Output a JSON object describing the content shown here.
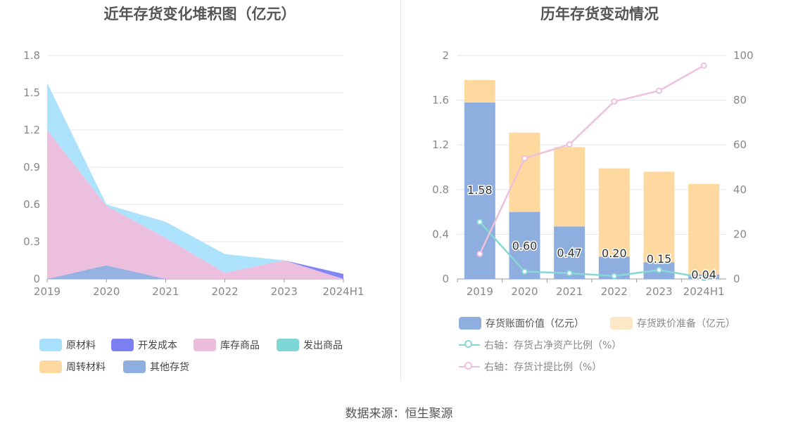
{
  "left_chart": {
    "title": "近年存货变化堆积图（亿元）",
    "legend": [
      {
        "key": "raw",
        "label": "原材料",
        "color": "#a8e0fb"
      },
      {
        "key": "dev",
        "label": "开发成本",
        "color": "#7b7ff2"
      },
      {
        "key": "goods",
        "label": "库存商品",
        "color": "#ecbcdc"
      },
      {
        "key": "shipped",
        "label": "发出商品",
        "color": "#7fd6d6"
      },
      {
        "key": "turnover",
        "label": "周转材料",
        "color": "#fdd9a0"
      },
      {
        "key": "other",
        "label": "其他存货",
        "color": "#8faee0"
      }
    ]
  },
  "right_chart": {
    "title": "历年存货变动情况",
    "legend": [
      {
        "label": "存货账面价值（亿元）",
        "color": "#8faee0",
        "kind": "bar"
      },
      {
        "label": "存货跌价准备（亿元）",
        "color": "#fde7c6",
        "kind": "bar"
      },
      {
        "label": "右轴：存货占净资产比例（%）",
        "color": "#86d8d6",
        "kind": "line"
      },
      {
        "label": "右轴：存货计提比例（%）",
        "color": "#eec0de",
        "kind": "line"
      }
    ]
  },
  "source": "数据来源：恒生聚源",
  "chart_data": [
    {
      "type": "area",
      "stacked": true,
      "title": "近年存货变化堆积图（亿元）",
      "categories": [
        "2019",
        "2020",
        "2021",
        "2022",
        "2023",
        "2024H1"
      ],
      "ylim": [
        0,
        1.8
      ],
      "yticks": [
        "0",
        "0.3",
        "0.6",
        "0.9",
        "1.2",
        "1.5",
        "1.8"
      ],
      "grid": true,
      "legend_position": "bottom",
      "series": [
        {
          "name": "其他存货",
          "key": "other",
          "values": [
            0,
            0.11,
            0,
            0,
            0,
            0
          ]
        },
        {
          "name": "发出商品",
          "key": "shipped",
          "values": [
            0,
            0,
            0,
            0,
            0,
            0
          ]
        },
        {
          "name": "库存商品",
          "key": "goods",
          "values": [
            1.2,
            0.48,
            0.33,
            0.05,
            0.15,
            0
          ]
        },
        {
          "name": "开发成本",
          "key": "dev",
          "values": [
            0,
            0,
            0,
            0,
            0,
            0.04
          ]
        },
        {
          "name": "周转材料",
          "key": "turnover",
          "values": [
            0,
            0,
            0,
            0,
            0,
            0
          ]
        },
        {
          "name": "原材料",
          "key": "raw",
          "values": [
            0.38,
            0.01,
            0.13,
            0.15,
            0,
            0
          ]
        }
      ]
    },
    {
      "type": "bar",
      "stacked": true,
      "title": "历年存货变动情况",
      "categories": [
        "2019",
        "2020",
        "2021",
        "2022",
        "2023",
        "2024H1"
      ],
      "ylim": [
        0,
        2
      ],
      "yticks": [
        "0",
        "0.4",
        "0.8",
        "1.2",
        "1.6",
        "2"
      ],
      "y2lim": [
        0,
        100
      ],
      "y2ticks": [
        "0",
        "20",
        "40",
        "60",
        "80",
        "100"
      ],
      "grid": true,
      "legend_position": "bottom",
      "series": [
        {
          "name": "存货账面价值（亿元）",
          "values": [
            1.58,
            0.6,
            0.47,
            0.2,
            0.15,
            0.04
          ],
          "labels": [
            "1.58",
            "0.60",
            "0.47",
            "0.20",
            "0.15",
            "0.04"
          ]
        },
        {
          "name": "存货跌价准备（亿元）",
          "values": [
            0.2,
            0.71,
            0.71,
            0.79,
            0.81,
            0.81
          ]
        }
      ],
      "lines": [
        {
          "name": "右轴：存货占净资产比例（%）",
          "axis": "right",
          "values": [
            25.5,
            3.3,
            2.6,
            1.3,
            4.0,
            0.5
          ]
        },
        {
          "name": "右轴：存货计提比例（%）",
          "axis": "right",
          "values": [
            11.2,
            54.0,
            60.2,
            79.4,
            84.2,
            95.5
          ]
        }
      ]
    }
  ]
}
